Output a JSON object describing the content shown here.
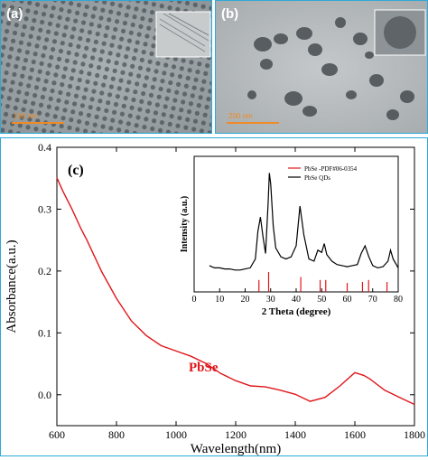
{
  "panel_a": {
    "tag": "(a)",
    "scale_label": "100 nm"
  },
  "panel_b": {
    "tag": "(b)",
    "scale_label": "200 nm"
  },
  "panel_c": {
    "tag": "(c)",
    "sample_label": "PbSe",
    "colors": {
      "absorbance_curve": "#e0161b",
      "sample_label": "#e0161b",
      "frame": "#2fa9d8"
    }
  },
  "chart_data": [
    {
      "type": "line",
      "title": "",
      "xlabel": "Wavelength(nm)",
      "ylabel": "Absorbance(a.u.)",
      "xlim": [
        600,
        1800
      ],
      "ylim": [
        -0.05,
        0.4
      ],
      "xticks": [
        "600",
        "800",
        "1000",
        "1200",
        "1400",
        "1600",
        "1800"
      ],
      "yticks": [
        "0.0",
        "0.1",
        "0.2",
        "0.3",
        "0.4"
      ],
      "grid": false,
      "series": [
        {
          "color": "#e0161b",
          "x": [
            600,
            620,
            650,
            680,
            700,
            750,
            800,
            850,
            900,
            950,
            1000,
            1050,
            1100,
            1150,
            1200,
            1250,
            1300,
            1350,
            1400,
            1450,
            1500,
            1550,
            1600,
            1630,
            1650,
            1700,
            1750,
            1800
          ],
          "y": [
            0.35,
            0.33,
            0.3,
            0.27,
            0.25,
            0.2,
            0.155,
            0.12,
            0.095,
            0.08,
            0.07,
            0.063,
            0.05,
            0.035,
            0.022,
            0.015,
            0.012,
            0.008,
            0.0,
            -0.01,
            -0.005,
            0.015,
            0.035,
            0.032,
            0.025,
            0.008,
            -0.005,
            -0.015
          ]
        }
      ]
    },
    {
      "type": "line",
      "title": "",
      "xlabel": "2 Theta (degree)",
      "ylabel": "Intensity (a.u.)",
      "xlim": [
        0,
        80
      ],
      "xticks": [
        "0",
        "10",
        "20",
        "30",
        "40",
        "50",
        "60",
        "70",
        "80"
      ],
      "legend": {
        "position": "top-right",
        "entries": [
          "PbSe -PDF#06-0354",
          "PbSe QDs"
        ]
      },
      "series": [
        {
          "name": "PbSe QDs",
          "color": "#000000",
          "x": [
            6,
            8,
            10,
            12,
            14,
            16,
            18,
            20,
            22,
            24,
            25,
            26,
            27,
            28,
            29,
            29.5,
            30,
            31,
            32,
            34,
            36,
            38,
            40,
            41.5,
            43,
            45,
            47,
            48.5,
            50,
            51,
            52,
            54,
            56,
            58,
            60,
            62,
            64,
            65.5,
            67,
            68.5,
            70,
            72,
            74,
            76,
            77,
            78,
            80
          ],
          "y": [
            0.14,
            0.12,
            0.12,
            0.11,
            0.11,
            0.1,
            0.1,
            0.11,
            0.12,
            0.2,
            0.45,
            0.58,
            0.4,
            0.25,
            0.7,
            0.98,
            0.88,
            0.5,
            0.3,
            0.22,
            0.2,
            0.22,
            0.32,
            0.68,
            0.42,
            0.2,
            0.18,
            0.28,
            0.26,
            0.34,
            0.24,
            0.18,
            0.15,
            0.14,
            0.13,
            0.14,
            0.15,
            0.25,
            0.32,
            0.22,
            0.14,
            0.12,
            0.13,
            0.18,
            0.28,
            0.2,
            0.12
          ]
        },
        {
          "name": "PbSe -PDF#06-0354",
          "color": "#e0161b",
          "type": "stick",
          "x": [
            25.4,
            29.2,
            41.8,
            49.4,
            51.6,
            60.0,
            66.0,
            68.4,
            75.6
          ],
          "y": [
            0.6,
            1.0,
            0.75,
            0.6,
            0.6,
            0.45,
            0.5,
            0.6,
            0.5
          ]
        }
      ]
    }
  ]
}
